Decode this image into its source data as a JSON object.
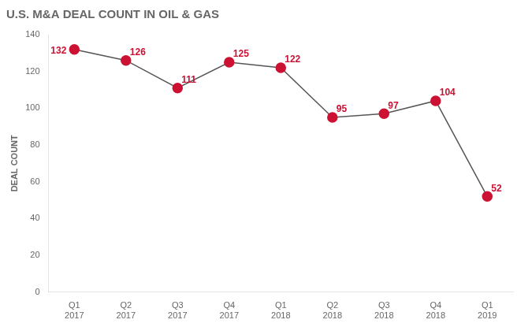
{
  "chart_data": {
    "type": "line",
    "title": "U.S. M&A DEAL COUNT IN OIL & GAS",
    "categories": [
      "Q1\n2017",
      "Q2\n2017",
      "Q3\n2017",
      "Q4\n2017",
      "Q1\n2018",
      "Q2\n2018",
      "Q3\n2018",
      "Q4\n2018",
      "Q1\n2019"
    ],
    "values": [
      132,
      126,
      111,
      125,
      122,
      95,
      97,
      104,
      52
    ],
    "ylabel": "DEAL COUNT",
    "ylim": [
      0,
      140
    ],
    "yticks": [
      0,
      20,
      40,
      60,
      80,
      100,
      120,
      140
    ],
    "color": "#cc1133",
    "marker": "circle",
    "data_labels": true,
    "grid": false
  }
}
